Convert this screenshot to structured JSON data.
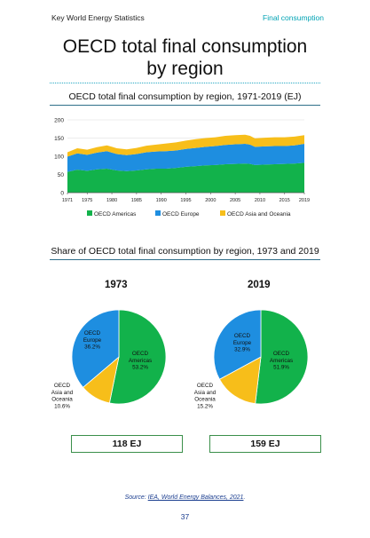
{
  "header": {
    "left": "Key World Energy Statistics",
    "right": "Final consumption"
  },
  "page_title_line1": "OECD total final consumption",
  "page_title_line2": "by region",
  "colors": {
    "americas": "#12b24b",
    "europe": "#1e8ee0",
    "asia": "#f7be1a",
    "accent": "#00a3b4"
  },
  "chart_data": [
    {
      "type": "area",
      "stacked": true,
      "title": "OECD total final consumption by region, 1971-2019 (EJ)",
      "x_ticks": [
        "1971",
        "1975",
        "1980",
        "1985",
        "1990",
        "1995",
        "2000",
        "2005",
        "2010",
        "2015",
        "2019"
      ],
      "y_ticks": [
        0,
        50,
        100,
        150,
        200
      ],
      "ylim": [
        0,
        200
      ],
      "xlim": [
        1971,
        2019
      ],
      "legend_position": "bottom",
      "x": [
        1971,
        1973,
        1975,
        1977,
        1979,
        1981,
        1983,
        1985,
        1987,
        1989,
        1991,
        1993,
        1995,
        1997,
        1999,
        2001,
        2003,
        2005,
        2007,
        2008,
        2009,
        2011,
        2013,
        2015,
        2017,
        2019
      ],
      "series": [
        {
          "name": "OECD Americas",
          "color": "#12b24b",
          "values": [
            57,
            63,
            60,
            64,
            66,
            61,
            59,
            61,
            64,
            66,
            66,
            68,
            71,
            73,
            75,
            76,
            78,
            79,
            80,
            79,
            76,
            77,
            78,
            79,
            80,
            82
          ]
        },
        {
          "name": "OECD Europe",
          "color": "#1e8ee0",
          "values": [
            42,
            45,
            44,
            46,
            48,
            45,
            44,
            45,
            47,
            47,
            48,
            48,
            49,
            50,
            51,
            52,
            53,
            54,
            54,
            53,
            50,
            50,
            50,
            49,
            50,
            52
          ]
        },
        {
          "name": "OECD Asia and Oceania",
          "color": "#f7be1a",
          "values": [
            12,
            14,
            14,
            15,
            16,
            16,
            16,
            17,
            18,
            19,
            21,
            22,
            23,
            24,
            24,
            24,
            25,
            25,
            25,
            24,
            23,
            24,
            24,
            24,
            24,
            24
          ]
        }
      ]
    },
    {
      "type": "pie",
      "title": "Share of OECD total final consumption by region, 1973 and 2019",
      "year": "1973",
      "total_label": "118 EJ",
      "slices": [
        {
          "label_lines": [
            "OECD",
            "Americas",
            "53.2%"
          ],
          "value": 53.2,
          "color": "#12b24b"
        },
        {
          "label_lines": [
            "OECD",
            "Asia and",
            "Oceania",
            "10.6%"
          ],
          "value": 10.6,
          "color": "#f7be1a"
        },
        {
          "label_lines": [
            "OECD",
            "Europe",
            "36.2%"
          ],
          "value": 36.2,
          "color": "#1e8ee0"
        }
      ]
    },
    {
      "type": "pie",
      "year": "2019",
      "total_label": "159 EJ",
      "slices": [
        {
          "label_lines": [
            "OECD",
            "Americas",
            "51.9%"
          ],
          "value": 51.9,
          "color": "#12b24b"
        },
        {
          "label_lines": [
            "OECD",
            "Asia and",
            "Oceania",
            "15.2%"
          ],
          "value": 15.2,
          "color": "#f7be1a"
        },
        {
          "label_lines": [
            "OECD",
            "Europe",
            "32.9%"
          ],
          "value": 32.9,
          "color": "#1e8ee0"
        }
      ]
    }
  ],
  "footer": {
    "source_prefix": "Source: ",
    "source_link": "IEA, World Energy Balances, 2021",
    "source_suffix": ".",
    "page_number": "37"
  }
}
